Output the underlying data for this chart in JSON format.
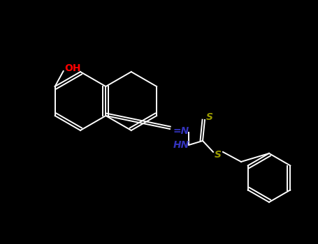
{
  "background_color": "#000000",
  "bond_color": "#ffffff",
  "oh_color": "#ff0000",
  "n_color": "#3333bb",
  "s_color": "#999900",
  "figsize": [
    4.55,
    3.5
  ],
  "dpi": 100,
  "oh_label": "OH",
  "n1_label": "N",
  "n2_label": "HN",
  "s1_label": "S",
  "s2_label": "S"
}
